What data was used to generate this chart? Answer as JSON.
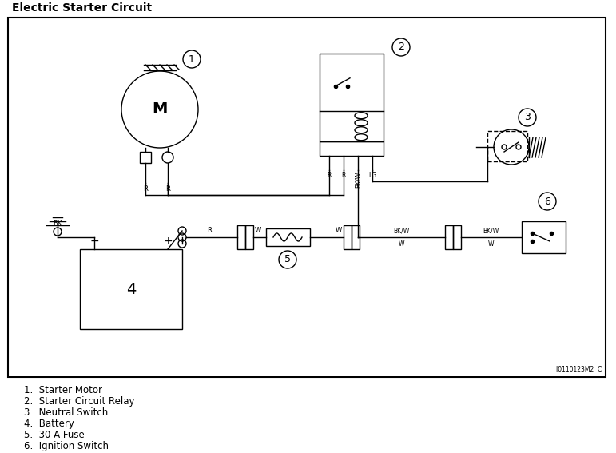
{
  "title": "Electric Starter Circuit",
  "bg_color": "#ffffff",
  "line_color": "#000000",
  "legend_items": [
    "1.  Starter Motor",
    "2.  Starter Circuit Relay",
    "3.  Neutral Switch",
    "4.  Battery",
    "5.  30 A Fuse",
    "6.  Ignition Switch"
  ],
  "watermark": "I0110123M2  C",
  "fig_width": 7.71,
  "fig_height": 5.67
}
